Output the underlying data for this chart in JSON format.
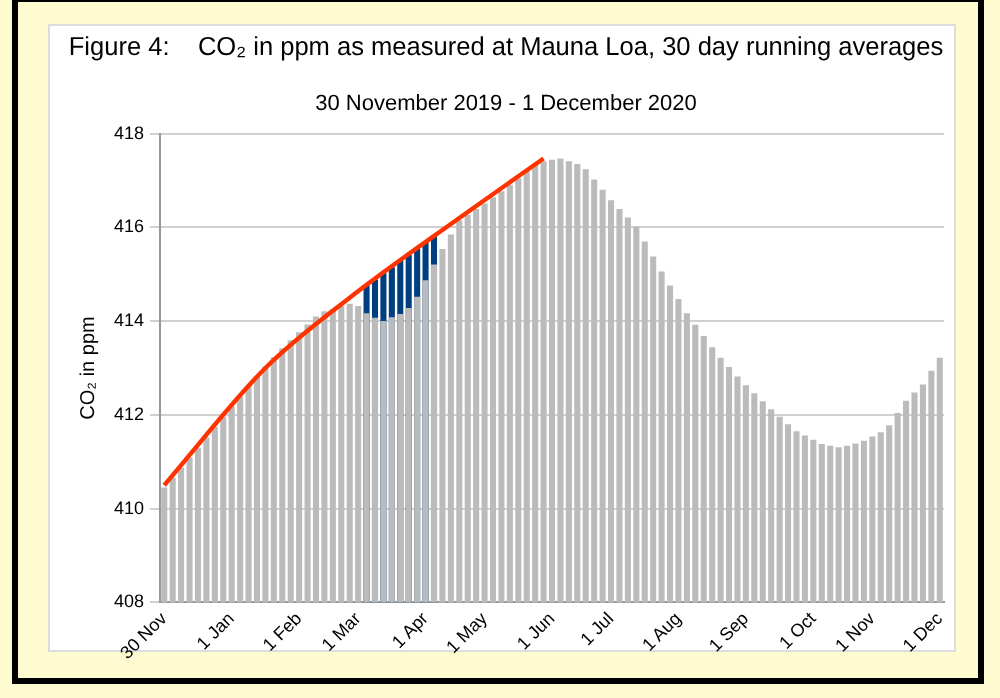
{
  "chart_data": {
    "type": "bar",
    "title": "Figure 4:    CO₂ in ppm as measured at Mauna Loa, 30 day running averages",
    "subtitle": "30 November 2019 - 1 December 2020",
    "ylabel": "CO₂ in ppm",
    "categories": [
      "30 Nov",
      null,
      null,
      null,
      null,
      null,
      null,
      null,
      "1 Jan",
      null,
      null,
      null,
      null,
      null,
      null,
      null,
      "1 Feb",
      null,
      null,
      null,
      null,
      null,
      null,
      "1 Mar",
      null,
      null,
      null,
      null,
      null,
      null,
      null,
      "1 Apr",
      null,
      null,
      null,
      null,
      null,
      null,
      "1 May",
      null,
      null,
      null,
      null,
      null,
      null,
      null,
      "1 Jun",
      null,
      null,
      null,
      null,
      null,
      null,
      "1 Jul",
      null,
      null,
      null,
      null,
      null,
      null,
      null,
      "1 Aug",
      null,
      null,
      null,
      null,
      null,
      null,
      null,
      "1 Sep",
      null,
      null,
      null,
      null,
      null,
      null,
      null,
      "1 Oct",
      null,
      null,
      null,
      null,
      null,
      null,
      "1 Nov",
      null,
      null,
      null,
      null,
      null,
      null,
      null,
      "1 Dec"
    ],
    "ylim": [
      408,
      418
    ],
    "yticks": [
      408,
      410,
      412,
      414,
      416,
      418
    ],
    "grid": "y",
    "legend": false,
    "marker": "none",
    "line_style": "solid",
    "series": [
      {
        "type": "bar",
        "color": "#003f7f",
        "values": [
          null,
          null,
          null,
          null,
          null,
          null,
          null,
          null,
          null,
          null,
          null,
          null,
          null,
          null,
          null,
          null,
          null,
          null,
          null,
          null,
          null,
          null,
          null,
          null,
          414.76,
          414.89,
          415.02,
          415.15,
          415.28,
          415.41,
          415.54,
          415.67,
          415.8,
          null,
          null,
          null,
          null,
          null,
          null,
          null,
          null,
          null,
          null,
          null,
          null,
          null,
          null,
          null,
          null,
          null,
          null,
          null,
          null,
          null,
          null,
          null,
          null,
          null,
          null,
          null,
          null,
          null,
          null,
          null,
          null,
          null,
          null,
          null,
          null,
          null,
          null,
          null,
          null,
          null,
          null,
          null,
          null,
          null,
          null,
          null,
          null,
          null,
          null,
          null,
          null,
          null,
          null,
          null,
          null,
          null,
          null,
          null,
          null
        ]
      },
      {
        "color": "#bbbbbb",
        "values": [
          410.45,
          410.66,
          410.88,
          411.09,
          411.3,
          411.52,
          411.74,
          411.96,
          412.18,
          412.39,
          412.61,
          412.83,
          413.03,
          413.23,
          413.42,
          413.59,
          413.76,
          413.93,
          414.1,
          414.21,
          414.26,
          414.32,
          414.37,
          414.32,
          414.17,
          414.07,
          414.0,
          414.08,
          414.15,
          414.28,
          414.52,
          414.87,
          415.21,
          415.54,
          415.85,
          416.15,
          416.27,
          416.39,
          416.51,
          416.64,
          416.77,
          416.91,
          417.05,
          417.19,
          417.33,
          417.41,
          417.44,
          417.47,
          417.41,
          417.35,
          417.24,
          417.02,
          416.8,
          416.58,
          416.39,
          416.21,
          416.02,
          415.7,
          415.38,
          415.06,
          414.76,
          414.47,
          414.17,
          413.92,
          413.68,
          413.44,
          413.22,
          413.02,
          412.82,
          412.63,
          412.46,
          412.29,
          412.12,
          411.96,
          411.8,
          411.65,
          411.56,
          411.47,
          411.38,
          411.34,
          411.31,
          411.34,
          411.39,
          411.45,
          411.54,
          411.63,
          411.78,
          412.04,
          412.3,
          412.48,
          412.65,
          412.94,
          413.22
        ]
      },
      {
        "type": "line",
        "color": "#ff3300",
        "values": [
          410.5,
          null,
          null,
          null,
          null,
          null,
          null,
          null,
          null,
          null,
          null,
          null,
          413.0,
          null,
          null,
          null,
          null,
          null,
          null,
          null,
          null,
          null,
          414.5,
          null,
          null,
          null,
          null,
          null,
          null,
          null,
          null,
          null,
          null,
          null,
          null,
          416.2,
          null,
          null,
          null,
          null,
          null,
          null,
          null,
          null,
          null,
          417.47,
          null,
          null,
          null,
          null,
          null,
          null,
          null,
          null,
          null,
          null,
          null,
          null,
          null,
          null,
          null,
          null,
          null,
          null,
          null,
          null,
          null,
          null,
          null,
          null,
          null,
          null,
          null,
          null,
          null,
          null,
          null,
          null,
          null,
          null,
          null,
          null,
          null,
          null,
          null,
          null,
          null,
          null,
          null,
          null,
          null,
          null,
          null
        ]
      }
    ]
  }
}
